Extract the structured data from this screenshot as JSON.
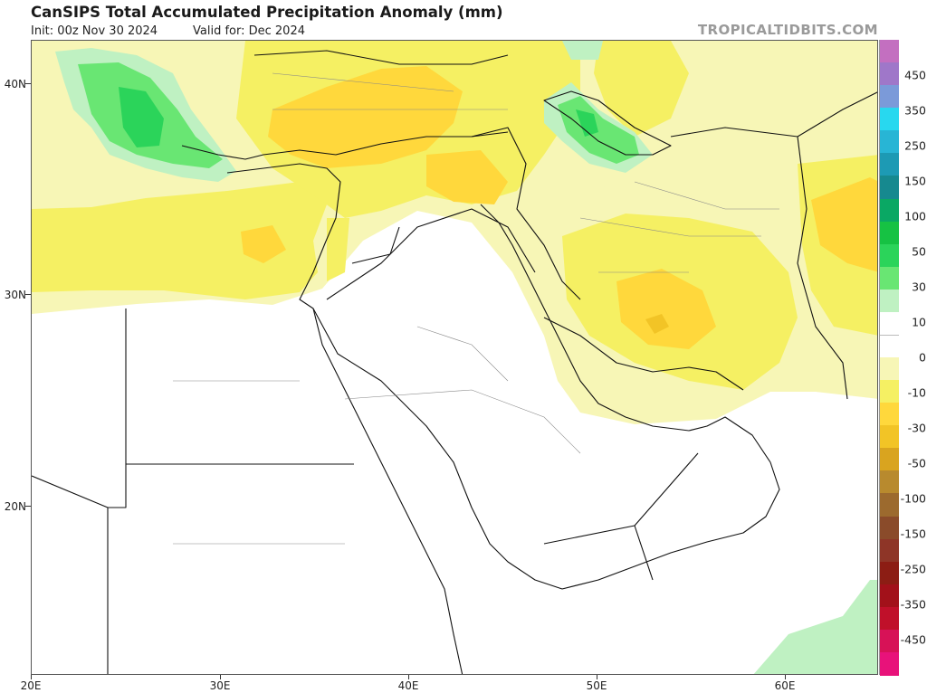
{
  "header": {
    "title": "CanSIPS Total Accumulated Precipitation Anomaly (mm)",
    "init": "Init: 00z Nov 30 2024",
    "valid": "Valid for: Dec 2024",
    "brand": "TROPICALTIDBITS.COM"
  },
  "map": {
    "lon_ticks": [
      "20E",
      "30E",
      "40E",
      "50E",
      "60E"
    ],
    "lat_ticks": [
      "40N",
      "30N",
      "20N"
    ]
  },
  "colorbar": {
    "labels": [
      "450",
      "350",
      "250",
      "150",
      "100",
      "50",
      "30",
      "10",
      "0",
      "-10",
      "-30",
      "-50",
      "-100",
      "-150",
      "-250",
      "-350",
      "-450"
    ],
    "colors": [
      "#c36fc0",
      "#9f77c9",
      "#7b9ad9",
      "#28d8ef",
      "#28b5d5",
      "#1d9ab4",
      "#16898f",
      "#0aa864",
      "#16c243",
      "#2bd45a",
      "#69e673",
      "#bff1c2",
      "#ffffff",
      "#ffffff",
      "#f7f6b6",
      "#f5f063",
      "#ffd83c",
      "#f2c426",
      "#d9a41f",
      "#b88a2e",
      "#9c6a2e",
      "#8a4b2a",
      "#8e3527",
      "#8c1d14",
      "#a2111a",
      "#c0102a",
      "#d71257",
      "#e8127a"
    ]
  }
}
